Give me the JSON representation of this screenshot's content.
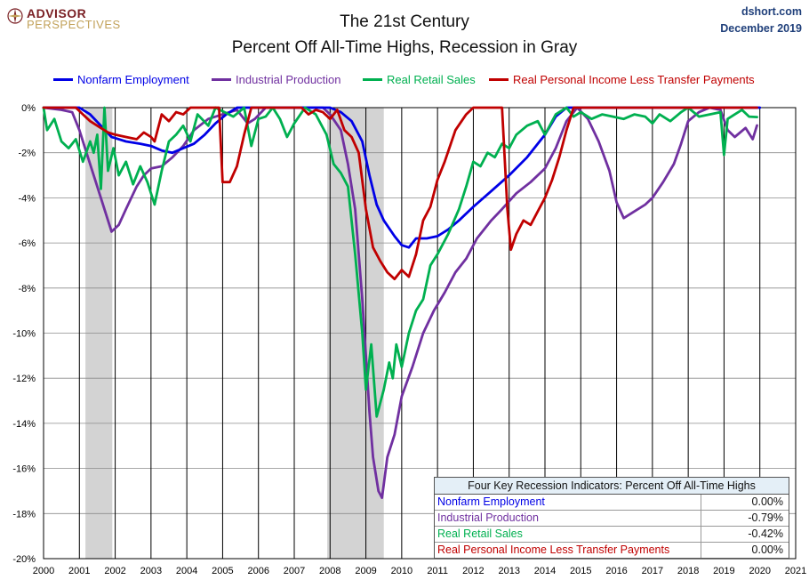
{
  "brand": {
    "line1": "ADVISOR",
    "line2": "PERSPECTIVES"
  },
  "title_line1": "The 21st Century",
  "title_line2": "Percent Off All-Time Highs, Recession in Gray",
  "source": "dshort.com",
  "date": "December 2019",
  "colors": {
    "employment": "#0000e6",
    "industrial": "#7030a0",
    "retail": "#00b050",
    "income": "#c00000",
    "recession": "#d3d3d3"
  },
  "table": {
    "header": "Four Key Recession Indicators: Percent Off All-Time Highs",
    "rows": [
      {
        "label": "Nonfarm Employment",
        "value": "0.00%"
      },
      {
        "label": "Industrial Production",
        "value": "-0.79%"
      },
      {
        "label": "Real Retail Sales",
        "value": "-0.42%"
      },
      {
        "label": "Real Personal Income Less Transfer Payments",
        "value": "0.00%"
      }
    ]
  },
  "chart_data": {
    "type": "line",
    "title": "The 21st Century — Percent Off All-Time Highs, Recession in Gray",
    "xlabel": "",
    "ylabel": "",
    "xlim": [
      2000,
      2021
    ],
    "ylim": [
      -20,
      0
    ],
    "x_ticks": [
      "2000",
      "2001",
      "2002",
      "2003",
      "2004",
      "2005",
      "2006",
      "2007",
      "2008",
      "2009",
      "2010",
      "2011",
      "2012",
      "2013",
      "2014",
      "2015",
      "2016",
      "2017",
      "2018",
      "2019",
      "2020",
      "2021"
    ],
    "y_ticks": [
      "0%",
      "-2%",
      "-4%",
      "-6%",
      "-8%",
      "-10%",
      "-12%",
      "-14%",
      "-16%",
      "-18%",
      "-20%"
    ],
    "recessions": [
      [
        2001.17,
        2001.92
      ],
      [
        2007.92,
        2009.5
      ]
    ],
    "grid": "vertical-year-lines",
    "legend_position": "top",
    "series": [
      {
        "name": "Nonfarm Employment",
        "color": "#0000e6",
        "points": [
          [
            2000.0,
            0
          ],
          [
            2001.0,
            0
          ],
          [
            2001.3,
            -0.3
          ],
          [
            2001.6,
            -0.8
          ],
          [
            2001.9,
            -1.3
          ],
          [
            2002.3,
            -1.5
          ],
          [
            2002.7,
            -1.6
          ],
          [
            2003.0,
            -1.7
          ],
          [
            2003.3,
            -1.9
          ],
          [
            2003.6,
            -2.0
          ],
          [
            2003.9,
            -1.8
          ],
          [
            2004.2,
            -1.6
          ],
          [
            2004.5,
            -1.2
          ],
          [
            2004.8,
            -0.7
          ],
          [
            2005.1,
            -0.3
          ],
          [
            2005.4,
            0
          ],
          [
            2008.0,
            0
          ],
          [
            2008.3,
            -0.2
          ],
          [
            2008.6,
            -0.6
          ],
          [
            2008.9,
            -1.5
          ],
          [
            2009.1,
            -3.0
          ],
          [
            2009.3,
            -4.3
          ],
          [
            2009.5,
            -5.0
          ],
          [
            2009.8,
            -5.7
          ],
          [
            2010.0,
            -6.1
          ],
          [
            2010.2,
            -6.2
          ],
          [
            2010.4,
            -5.8
          ],
          [
            2010.7,
            -5.8
          ],
          [
            2011.0,
            -5.7
          ],
          [
            2011.3,
            -5.4
          ],
          [
            2011.6,
            -5.0
          ],
          [
            2012.0,
            -4.4
          ],
          [
            2012.5,
            -3.7
          ],
          [
            2013.0,
            -3.0
          ],
          [
            2013.5,
            -2.2
          ],
          [
            2014.0,
            -1.2
          ],
          [
            2014.3,
            -0.4
          ],
          [
            2014.6,
            0
          ],
          [
            2020.0,
            0
          ]
        ]
      },
      {
        "name": "Industrial Production",
        "color": "#7030a0",
        "points": [
          [
            2000.0,
            0
          ],
          [
            2000.5,
            -0.1
          ],
          [
            2000.8,
            -0.2
          ],
          [
            2001.0,
            -1.0
          ],
          [
            2001.2,
            -2.0
          ],
          [
            2001.5,
            -3.5
          ],
          [
            2001.8,
            -5.0
          ],
          [
            2001.9,
            -5.5
          ],
          [
            2002.1,
            -5.2
          ],
          [
            2002.3,
            -4.5
          ],
          [
            2002.6,
            -3.5
          ],
          [
            2002.8,
            -3.0
          ],
          [
            2003.0,
            -2.7
          ],
          [
            2003.3,
            -2.6
          ],
          [
            2003.6,
            -2.2
          ],
          [
            2003.9,
            -1.7
          ],
          [
            2004.2,
            -1.0
          ],
          [
            2004.6,
            -0.5
          ],
          [
            2005.0,
            -0.3
          ],
          [
            2005.4,
            -0.1
          ],
          [
            2005.7,
            -0.7
          ],
          [
            2005.9,
            -0.5
          ],
          [
            2006.2,
            0
          ],
          [
            2007.8,
            0
          ],
          [
            2008.0,
            -0.3
          ],
          [
            2008.3,
            -1.0
          ],
          [
            2008.5,
            -2.5
          ],
          [
            2008.7,
            -4.5
          ],
          [
            2008.9,
            -8.5
          ],
          [
            2009.0,
            -11.0
          ],
          [
            2009.1,
            -13.5
          ],
          [
            2009.2,
            -15.5
          ],
          [
            2009.35,
            -17.0
          ],
          [
            2009.45,
            -17.3
          ],
          [
            2009.6,
            -15.5
          ],
          [
            2009.8,
            -14.5
          ],
          [
            2010.0,
            -12.8
          ],
          [
            2010.3,
            -11.5
          ],
          [
            2010.6,
            -10.0
          ],
          [
            2010.9,
            -9.0
          ],
          [
            2011.2,
            -8.2
          ],
          [
            2011.5,
            -7.3
          ],
          [
            2011.8,
            -6.7
          ],
          [
            2012.1,
            -5.8
          ],
          [
            2012.5,
            -5.0
          ],
          [
            2012.8,
            -4.5
          ],
          [
            2013.2,
            -3.8
          ],
          [
            2013.6,
            -3.3
          ],
          [
            2014.0,
            -2.7
          ],
          [
            2014.3,
            -1.8
          ],
          [
            2014.6,
            -0.6
          ],
          [
            2014.9,
            0
          ],
          [
            2015.2,
            -0.5
          ],
          [
            2015.5,
            -1.5
          ],
          [
            2015.8,
            -2.8
          ],
          [
            2016.0,
            -4.2
          ],
          [
            2016.2,
            -4.9
          ],
          [
            2016.5,
            -4.6
          ],
          [
            2016.8,
            -4.3
          ],
          [
            2017.0,
            -4.0
          ],
          [
            2017.3,
            -3.3
          ],
          [
            2017.6,
            -2.5
          ],
          [
            2017.8,
            -1.6
          ],
          [
            2018.0,
            -0.6
          ],
          [
            2018.3,
            -0.2
          ],
          [
            2018.6,
            0
          ],
          [
            2018.9,
            -0.1
          ],
          [
            2019.1,
            -1.0
          ],
          [
            2019.3,
            -1.3
          ],
          [
            2019.6,
            -0.9
          ],
          [
            2019.8,
            -1.4
          ],
          [
            2019.92,
            -0.79
          ]
        ]
      },
      {
        "name": "Real Retail Sales",
        "color": "#00b050",
        "points": [
          [
            2000.0,
            0
          ],
          [
            2000.1,
            -1.0
          ],
          [
            2000.3,
            -0.5
          ],
          [
            2000.5,
            -1.5
          ],
          [
            2000.7,
            -1.8
          ],
          [
            2000.9,
            -1.4
          ],
          [
            2001.1,
            -2.4
          ],
          [
            2001.3,
            -1.5
          ],
          [
            2001.4,
            -2.0
          ],
          [
            2001.5,
            -1.2
          ],
          [
            2001.6,
            -3.6
          ],
          [
            2001.7,
            0
          ],
          [
            2001.8,
            -2.8
          ],
          [
            2001.95,
            -1.8
          ],
          [
            2002.1,
            -3.0
          ],
          [
            2002.3,
            -2.4
          ],
          [
            2002.5,
            -3.4
          ],
          [
            2002.7,
            -2.6
          ],
          [
            2002.9,
            -3.3
          ],
          [
            2003.1,
            -4.3
          ],
          [
            2003.3,
            -2.8
          ],
          [
            2003.5,
            -1.5
          ],
          [
            2003.7,
            -1.2
          ],
          [
            2003.9,
            -0.8
          ],
          [
            2004.1,
            -1.5
          ],
          [
            2004.3,
            -0.3
          ],
          [
            2004.6,
            -0.8
          ],
          [
            2004.8,
            0
          ],
          [
            2005.3,
            -0.4
          ],
          [
            2005.6,
            0
          ],
          [
            2005.8,
            -1.7
          ],
          [
            2006.0,
            -0.5
          ],
          [
            2006.2,
            -0.4
          ],
          [
            2006.4,
            0
          ],
          [
            2006.6,
            -0.5
          ],
          [
            2006.8,
            -1.3
          ],
          [
            2007.0,
            -0.7
          ],
          [
            2007.3,
            0
          ],
          [
            2007.6,
            -0.3
          ],
          [
            2007.9,
            -1.2
          ],
          [
            2008.1,
            -2.5
          ],
          [
            2008.3,
            -2.9
          ],
          [
            2008.5,
            -3.5
          ],
          [
            2008.7,
            -6.5
          ],
          [
            2008.9,
            -10.0
          ],
          [
            2009.0,
            -12.5
          ],
          [
            2009.15,
            -10.5
          ],
          [
            2009.3,
            -13.7
          ],
          [
            2009.5,
            -12.5
          ],
          [
            2009.65,
            -11.3
          ],
          [
            2009.75,
            -12.0
          ],
          [
            2009.85,
            -10.5
          ],
          [
            2010.0,
            -11.5
          ],
          [
            2010.2,
            -10.0
          ],
          [
            2010.4,
            -9.0
          ],
          [
            2010.6,
            -8.5
          ],
          [
            2010.8,
            -7.0
          ],
          [
            2011.0,
            -6.5
          ],
          [
            2011.3,
            -5.6
          ],
          [
            2011.6,
            -4.5
          ],
          [
            2011.8,
            -3.5
          ],
          [
            2012.0,
            -2.4
          ],
          [
            2012.2,
            -2.6
          ],
          [
            2012.4,
            -2.0
          ],
          [
            2012.6,
            -2.2
          ],
          [
            2012.8,
            -1.6
          ],
          [
            2013.0,
            -1.8
          ],
          [
            2013.2,
            -1.2
          ],
          [
            2013.5,
            -0.8
          ],
          [
            2013.8,
            -0.6
          ],
          [
            2014.0,
            -1.2
          ],
          [
            2014.3,
            -0.3
          ],
          [
            2014.6,
            0
          ],
          [
            2014.8,
            -0.4
          ],
          [
            2015.0,
            -0.2
          ],
          [
            2015.3,
            -0.5
          ],
          [
            2015.6,
            -0.3
          ],
          [
            2015.9,
            -0.4
          ],
          [
            2016.2,
            -0.5
          ],
          [
            2016.5,
            -0.3
          ],
          [
            2016.8,
            -0.4
          ],
          [
            2017.0,
            -0.7
          ],
          [
            2017.2,
            -0.3
          ],
          [
            2017.5,
            -0.6
          ],
          [
            2017.8,
            -0.2
          ],
          [
            2018.0,
            0
          ],
          [
            2018.3,
            -0.4
          ],
          [
            2018.6,
            -0.3
          ],
          [
            2018.9,
            -0.2
          ],
          [
            2019.0,
            -2.1
          ],
          [
            2019.1,
            -0.5
          ],
          [
            2019.3,
            -0.3
          ],
          [
            2019.5,
            -0.1
          ],
          [
            2019.7,
            -0.4
          ],
          [
            2019.92,
            -0.42
          ]
        ]
      },
      {
        "name": "Real Personal Income Less Transfer Payments",
        "color": "#c00000",
        "points": [
          [
            2000.0,
            0
          ],
          [
            2000.9,
            0
          ],
          [
            2001.1,
            -0.3
          ],
          [
            2001.3,
            -0.6
          ],
          [
            2001.5,
            -0.8
          ],
          [
            2001.8,
            -1.1
          ],
          [
            2002.0,
            -1.2
          ],
          [
            2002.3,
            -1.3
          ],
          [
            2002.6,
            -1.4
          ],
          [
            2002.8,
            -1.1
          ],
          [
            2003.0,
            -1.3
          ],
          [
            2003.1,
            -1.5
          ],
          [
            2003.3,
            -0.3
          ],
          [
            2003.5,
            -0.6
          ],
          [
            2003.7,
            -0.2
          ],
          [
            2003.9,
            -0.3
          ],
          [
            2004.1,
            0
          ],
          [
            2004.9,
            0
          ],
          [
            2005.0,
            -3.3
          ],
          [
            2005.2,
            -3.3
          ],
          [
            2005.4,
            -2.6
          ],
          [
            2005.6,
            -1.2
          ],
          [
            2005.8,
            0
          ],
          [
            2007.2,
            0
          ],
          [
            2007.4,
            -0.3
          ],
          [
            2007.6,
            -0.1
          ],
          [
            2007.8,
            -0.2
          ],
          [
            2008.0,
            -0.5
          ],
          [
            2008.2,
            -0.1
          ],
          [
            2008.4,
            -1.0
          ],
          [
            2008.6,
            -1.3
          ],
          [
            2008.8,
            -2.0
          ],
          [
            2009.0,
            -4.5
          ],
          [
            2009.2,
            -6.2
          ],
          [
            2009.4,
            -6.8
          ],
          [
            2009.6,
            -7.3
          ],
          [
            2009.8,
            -7.6
          ],
          [
            2010.0,
            -7.2
          ],
          [
            2010.2,
            -7.5
          ],
          [
            2010.4,
            -6.5
          ],
          [
            2010.6,
            -5.0
          ],
          [
            2010.8,
            -4.4
          ],
          [
            2011.0,
            -3.2
          ],
          [
            2011.2,
            -2.4
          ],
          [
            2011.5,
            -1.0
          ],
          [
            2011.8,
            -0.3
          ],
          [
            2012.0,
            0
          ],
          [
            2012.8,
            0
          ],
          [
            2012.95,
            -4.5
          ],
          [
            2013.05,
            -6.3
          ],
          [
            2013.2,
            -5.6
          ],
          [
            2013.4,
            -5.0
          ],
          [
            2013.6,
            -5.2
          ],
          [
            2013.8,
            -4.6
          ],
          [
            2014.0,
            -4.0
          ],
          [
            2014.2,
            -3.2
          ],
          [
            2014.4,
            -2.2
          ],
          [
            2014.6,
            -1.0
          ],
          [
            2014.8,
            0
          ],
          [
            2019.92,
            0
          ]
        ]
      }
    ]
  }
}
